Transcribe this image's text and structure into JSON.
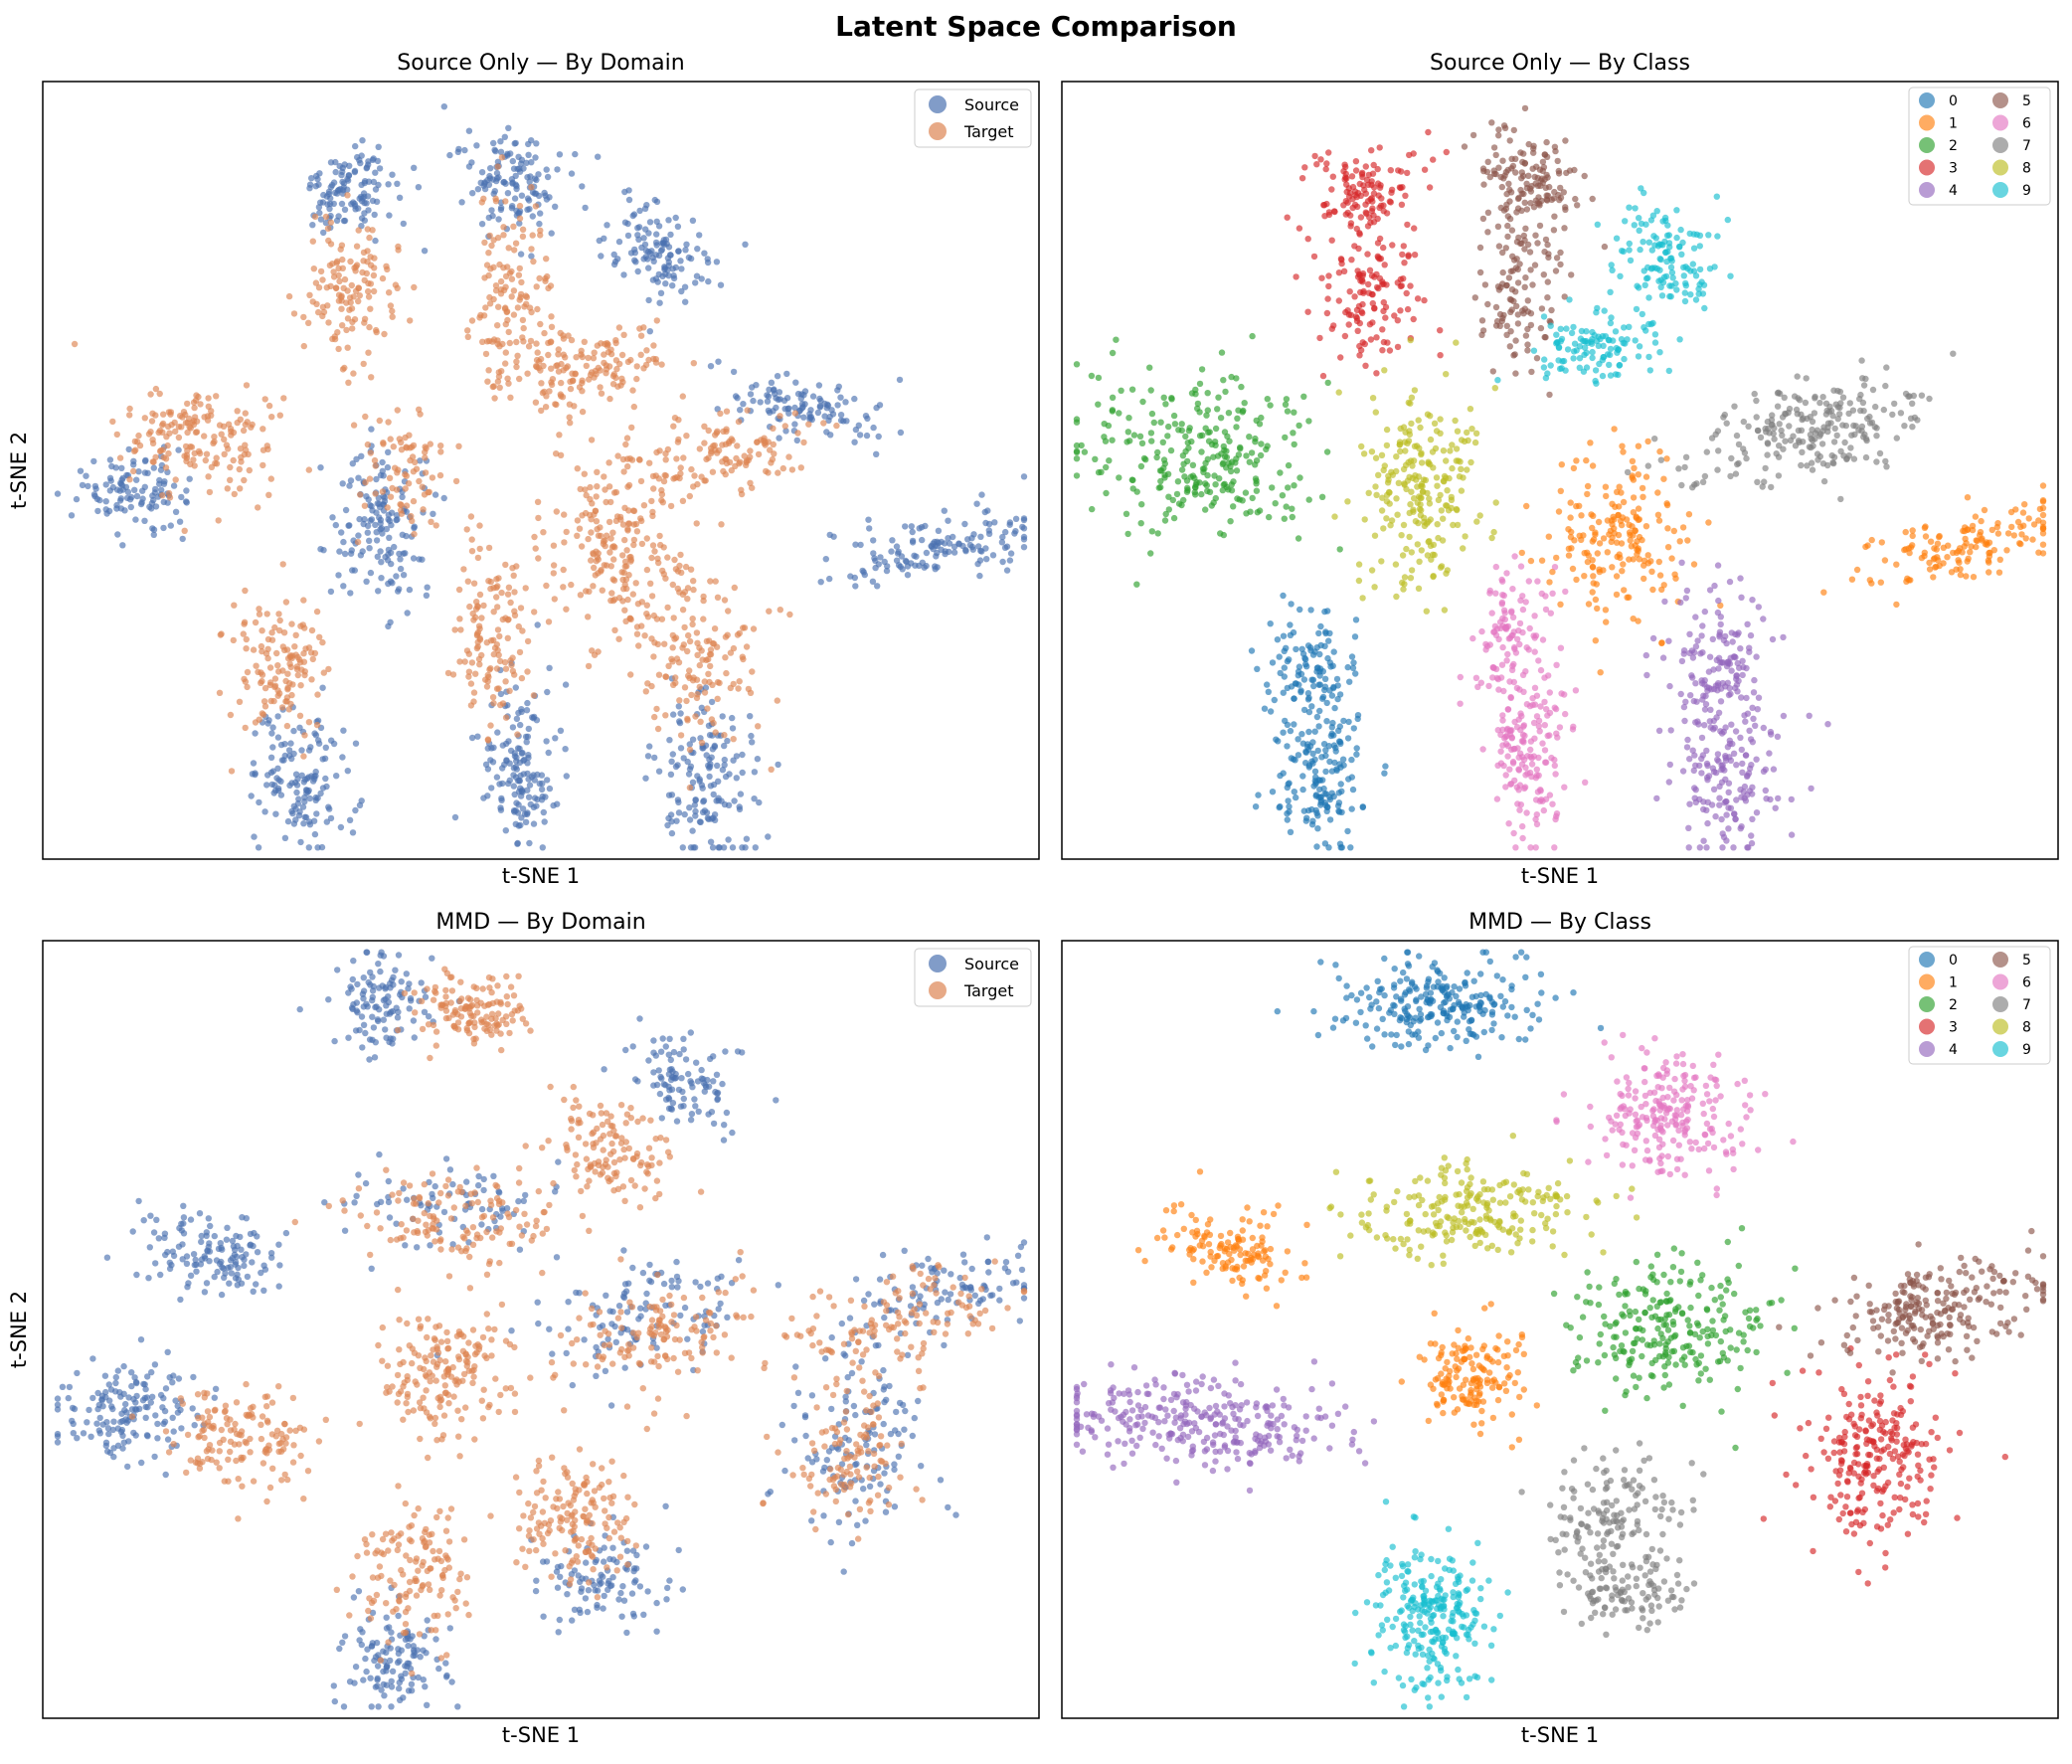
{
  "figure": {
    "title": "Latent Space Comparison"
  },
  "colors": {
    "source": "#4c72b0",
    "target": "#dd8452",
    "classes": [
      "#1f77b4",
      "#ff7f0e",
      "#2ca02c",
      "#d62728",
      "#9467bd",
      "#8c564b",
      "#e377c2",
      "#7f7f7f",
      "#bcbd22",
      "#17becf"
    ]
  },
  "chart_data": [
    {
      "type": "scatter",
      "title": "Source Only — By Domain",
      "xlabel": "t-SNE 1",
      "ylabel": "t-SNE 2",
      "ticks": "hidden",
      "legend": {
        "position": "top-right",
        "entries": [
          "Source",
          "Target"
        ]
      },
      "series": [
        {
          "name": "Source",
          "color": "#4c72b0",
          "clusters": [
            {
              "cx": 0.31,
              "cy": 0.86,
              "sx": 0.025,
              "sy": 0.03,
              "rot": -30,
              "n": 120
            },
            {
              "cx": 0.47,
              "cy": 0.87,
              "sx": 0.025,
              "sy": 0.035,
              "rot": 10,
              "n": 130
            },
            {
              "cx": 0.62,
              "cy": 0.78,
              "sx": 0.025,
              "sy": 0.035,
              "rot": 30,
              "n": 120
            },
            {
              "cx": 0.76,
              "cy": 0.58,
              "sx": 0.04,
              "sy": 0.02,
              "rot": -10,
              "n": 110
            },
            {
              "cx": 0.09,
              "cy": 0.47,
              "sx": 0.03,
              "sy": 0.025,
              "rot": 0,
              "n": 110
            },
            {
              "cx": 0.34,
              "cy": 0.43,
              "sx": 0.025,
              "sy": 0.05,
              "rot": 0,
              "n": 150
            },
            {
              "cx": 0.9,
              "cy": 0.4,
              "sx": 0.06,
              "sy": 0.02,
              "rot": 20,
              "n": 140
            },
            {
              "cx": 0.26,
              "cy": 0.1,
              "sx": 0.025,
              "sy": 0.045,
              "rot": 0,
              "n": 140
            },
            {
              "cx": 0.48,
              "cy": 0.12,
              "sx": 0.02,
              "sy": 0.06,
              "rot": 0,
              "n": 150
            },
            {
              "cx": 0.67,
              "cy": 0.1,
              "sx": 0.025,
              "sy": 0.06,
              "rot": 0,
              "n": 150
            }
          ]
        },
        {
          "name": "Target",
          "color": "#dd8452",
          "clusters": [
            {
              "cx": 0.31,
              "cy": 0.73,
              "sx": 0.025,
              "sy": 0.045,
              "rot": 0,
              "n": 130
            },
            {
              "cx": 0.47,
              "cy": 0.73,
              "sx": 0.02,
              "sy": 0.06,
              "rot": 0,
              "n": 130
            },
            {
              "cx": 0.54,
              "cy": 0.63,
              "sx": 0.04,
              "sy": 0.025,
              "rot": 20,
              "n": 140
            },
            {
              "cx": 0.68,
              "cy": 0.52,
              "sx": 0.05,
              "sy": 0.025,
              "rot": 10,
              "n": 130
            },
            {
              "cx": 0.16,
              "cy": 0.54,
              "sx": 0.045,
              "sy": 0.035,
              "rot": -20,
              "n": 170
            },
            {
              "cx": 0.36,
              "cy": 0.51,
              "sx": 0.025,
              "sy": 0.04,
              "rot": 0,
              "n": 80
            },
            {
              "cx": 0.57,
              "cy": 0.4,
              "sx": 0.035,
              "sy": 0.06,
              "rot": 0,
              "n": 200
            },
            {
              "cx": 0.24,
              "cy": 0.25,
              "sx": 0.025,
              "sy": 0.045,
              "rot": 0,
              "n": 130
            },
            {
              "cx": 0.45,
              "cy": 0.28,
              "sx": 0.02,
              "sy": 0.055,
              "rot": 0,
              "n": 130
            },
            {
              "cx": 0.66,
              "cy": 0.26,
              "sx": 0.03,
              "sy": 0.06,
              "rot": 0,
              "n": 150
            }
          ]
        }
      ]
    },
    {
      "type": "scatter",
      "title": "Source Only — By Class",
      "xlabel": "t-SNE 1",
      "ylabel": "",
      "ticks": "hidden",
      "legend": {
        "position": "top-right",
        "columns": 2,
        "entries": [
          "0",
          "1",
          "2",
          "3",
          "4",
          "5",
          "6",
          "7",
          "8",
          "9"
        ]
      },
      "series": [
        {
          "name": "0",
          "color": "#1f77b4",
          "clusters": [
            {
              "cx": 0.25,
              "cy": 0.24,
              "sx": 0.022,
              "sy": 0.045,
              "rot": 0,
              "n": 130
            },
            {
              "cx": 0.26,
              "cy": 0.1,
              "sx": 0.025,
              "sy": 0.045,
              "rot": 0,
              "n": 140
            }
          ]
        },
        {
          "name": "1",
          "color": "#ff7f0e",
          "clusters": [
            {
              "cx": 0.56,
              "cy": 0.41,
              "sx": 0.035,
              "sy": 0.055,
              "rot": 0,
              "n": 190
            },
            {
              "cx": 0.9,
              "cy": 0.4,
              "sx": 0.06,
              "sy": 0.022,
              "rot": 20,
              "n": 140
            }
          ]
        },
        {
          "name": "2",
          "color": "#2ca02c",
          "clusters": [
            {
              "cx": 0.13,
              "cy": 0.52,
              "sx": 0.06,
              "sy": 0.05,
              "rot": -15,
              "n": 280
            }
          ]
        },
        {
          "name": "3",
          "color": "#d62728",
          "clusters": [
            {
              "cx": 0.3,
              "cy": 0.86,
              "sx": 0.025,
              "sy": 0.03,
              "rot": -30,
              "n": 120
            },
            {
              "cx": 0.31,
              "cy": 0.73,
              "sx": 0.028,
              "sy": 0.045,
              "rot": 0,
              "n": 130
            }
          ]
        },
        {
          "name": "4",
          "color": "#9467bd",
          "clusters": [
            {
              "cx": 0.66,
              "cy": 0.25,
              "sx": 0.025,
              "sy": 0.055,
              "rot": 0,
              "n": 150
            },
            {
              "cx": 0.67,
              "cy": 0.1,
              "sx": 0.025,
              "sy": 0.055,
              "rot": 0,
              "n": 150
            }
          ]
        },
        {
          "name": "5",
          "color": "#8c564b",
          "clusters": [
            {
              "cx": 0.47,
              "cy": 0.87,
              "sx": 0.025,
              "sy": 0.035,
              "rot": 10,
              "n": 130
            },
            {
              "cx": 0.46,
              "cy": 0.74,
              "sx": 0.02,
              "sy": 0.055,
              "rot": 0,
              "n": 120
            }
          ]
        },
        {
          "name": "6",
          "color": "#e377c2",
          "clusters": [
            {
              "cx": 0.45,
              "cy": 0.28,
              "sx": 0.02,
              "sy": 0.055,
              "rot": 0,
              "n": 130
            },
            {
              "cx": 0.47,
              "cy": 0.12,
              "sx": 0.02,
              "sy": 0.055,
              "rot": 0,
              "n": 140
            }
          ]
        },
        {
          "name": "7",
          "color": "#7f7f7f",
          "clusters": [
            {
              "cx": 0.75,
              "cy": 0.55,
              "sx": 0.06,
              "sy": 0.03,
              "rot": 20,
              "n": 230
            }
          ]
        },
        {
          "name": "8",
          "color": "#bcbd22",
          "clusters": [
            {
              "cx": 0.36,
              "cy": 0.48,
              "sx": 0.03,
              "sy": 0.07,
              "rot": 0,
              "n": 230
            }
          ]
        },
        {
          "name": "9",
          "color": "#17becf",
          "clusters": [
            {
              "cx": 0.61,
              "cy": 0.78,
              "sx": 0.025,
              "sy": 0.035,
              "rot": 30,
              "n": 120
            },
            {
              "cx": 0.54,
              "cy": 0.66,
              "sx": 0.035,
              "sy": 0.025,
              "rot": 20,
              "n": 120
            }
          ]
        }
      ]
    },
    {
      "type": "scatter",
      "title": "MMD — By Domain",
      "xlabel": "t-SNE 1",
      "ylabel": "t-SNE 2",
      "ticks": "hidden",
      "legend": {
        "position": "top-right",
        "entries": [
          "Source",
          "Target"
        ]
      },
      "series": [
        {
          "name": "Source",
          "color": "#4c72b0",
          "clusters": [
            {
              "cx": 0.34,
              "cy": 0.92,
              "sx": 0.025,
              "sy": 0.03,
              "rot": 0,
              "n": 110
            },
            {
              "cx": 0.64,
              "cy": 0.82,
              "sx": 0.025,
              "sy": 0.035,
              "rot": 30,
              "n": 100
            },
            {
              "cx": 0.17,
              "cy": 0.6,
              "sx": 0.035,
              "sy": 0.025,
              "rot": -30,
              "n": 130
            },
            {
              "cx": 0.41,
              "cy": 0.66,
              "sx": 0.055,
              "sy": 0.03,
              "rot": 0,
              "n": 80
            },
            {
              "cx": 0.6,
              "cy": 0.52,
              "sx": 0.055,
              "sy": 0.04,
              "rot": 15,
              "n": 110
            },
            {
              "cx": 0.9,
              "cy": 0.55,
              "sx": 0.05,
              "sy": 0.025,
              "rot": 20,
              "n": 100
            },
            {
              "cx": 0.08,
              "cy": 0.4,
              "sx": 0.04,
              "sy": 0.03,
              "rot": -10,
              "n": 150
            },
            {
              "cx": 0.82,
              "cy": 0.35,
              "sx": 0.035,
              "sy": 0.06,
              "rot": 0,
              "n": 130
            },
            {
              "cx": 0.56,
              "cy": 0.18,
              "sx": 0.03,
              "sy": 0.03,
              "rot": 0,
              "n": 100
            },
            {
              "cx": 0.35,
              "cy": 0.08,
              "sx": 0.025,
              "sy": 0.035,
              "rot": 0,
              "n": 120
            }
          ]
        },
        {
          "name": "Target",
          "color": "#dd8452",
          "clusters": [
            {
              "cx": 0.43,
              "cy": 0.91,
              "sx": 0.03,
              "sy": 0.025,
              "rot": 0,
              "n": 130
            },
            {
              "cx": 0.57,
              "cy": 0.73,
              "sx": 0.03,
              "sy": 0.04,
              "rot": 30,
              "n": 120
            },
            {
              "cx": 0.41,
              "cy": 0.64,
              "sx": 0.055,
              "sy": 0.03,
              "rot": 0,
              "n": 130
            },
            {
              "cx": 0.62,
              "cy": 0.49,
              "sx": 0.05,
              "sy": 0.035,
              "rot": 15,
              "n": 130
            },
            {
              "cx": 0.86,
              "cy": 0.51,
              "sx": 0.055,
              "sy": 0.03,
              "rot": 20,
              "n": 120
            },
            {
              "cx": 0.2,
              "cy": 0.36,
              "sx": 0.04,
              "sy": 0.03,
              "rot": 0,
              "n": 140
            },
            {
              "cx": 0.4,
              "cy": 0.44,
              "sx": 0.03,
              "sy": 0.04,
              "rot": 0,
              "n": 170
            },
            {
              "cx": 0.81,
              "cy": 0.34,
              "sx": 0.03,
              "sy": 0.05,
              "rot": 0,
              "n": 110
            },
            {
              "cx": 0.53,
              "cy": 0.26,
              "sx": 0.035,
              "sy": 0.04,
              "rot": 0,
              "n": 150
            },
            {
              "cx": 0.37,
              "cy": 0.19,
              "sx": 0.03,
              "sy": 0.045,
              "rot": 0,
              "n": 130
            }
          ]
        }
      ]
    },
    {
      "type": "scatter",
      "title": "MMD — By Class",
      "xlabel": "t-SNE 1",
      "ylabel": "",
      "ticks": "hidden",
      "legend": {
        "position": "top-right",
        "columns": 2,
        "entries": [
          "0",
          "1",
          "2",
          "3",
          "4",
          "5",
          "6",
          "7",
          "8",
          "9"
        ]
      },
      "series": [
        {
          "name": "0",
          "color": "#1f77b4",
          "clusters": [
            {
              "cx": 0.38,
              "cy": 0.92,
              "sx": 0.055,
              "sy": 0.028,
              "rot": 0,
              "n": 240
            }
          ]
        },
        {
          "name": "1",
          "color": "#ff7f0e",
          "clusters": [
            {
              "cx": 0.17,
              "cy": 0.6,
              "sx": 0.035,
              "sy": 0.025,
              "rot": -30,
              "n": 130
            },
            {
              "cx": 0.41,
              "cy": 0.44,
              "sx": 0.025,
              "sy": 0.035,
              "rot": 0,
              "n": 150
            }
          ]
        },
        {
          "name": "2",
          "color": "#2ca02c",
          "clusters": [
            {
              "cx": 0.61,
              "cy": 0.5,
              "sx": 0.05,
              "sy": 0.04,
              "rot": 15,
              "n": 240
            }
          ]
        },
        {
          "name": "3",
          "color": "#d62728",
          "clusters": [
            {
              "cx": 0.82,
              "cy": 0.34,
              "sx": 0.035,
              "sy": 0.055,
              "rot": 0,
              "n": 240
            }
          ]
        },
        {
          "name": "4",
          "color": "#9467bd",
          "clusters": [
            {
              "cx": 0.14,
              "cy": 0.38,
              "sx": 0.07,
              "sy": 0.03,
              "rot": -5,
              "n": 290
            }
          ]
        },
        {
          "name": "5",
          "color": "#8c564b",
          "clusters": [
            {
              "cx": 0.88,
              "cy": 0.53,
              "sx": 0.055,
              "sy": 0.03,
              "rot": 20,
              "n": 220
            }
          ]
        },
        {
          "name": "6",
          "color": "#e377c2",
          "clusters": [
            {
              "cx": 0.61,
              "cy": 0.78,
              "sx": 0.035,
              "sy": 0.045,
              "rot": 30,
              "n": 220
            }
          ]
        },
        {
          "name": "7",
          "color": "#7f7f7f",
          "clusters": [
            {
              "cx": 0.55,
              "cy": 0.26,
              "sx": 0.035,
              "sy": 0.035,
              "rot": 0,
              "n": 140
            },
            {
              "cx": 0.57,
              "cy": 0.16,
              "sx": 0.03,
              "sy": 0.025,
              "rot": 0,
              "n": 100
            }
          ]
        },
        {
          "name": "8",
          "color": "#bcbd22",
          "clusters": [
            {
              "cx": 0.41,
              "cy": 0.65,
              "sx": 0.06,
              "sy": 0.03,
              "rot": 0,
              "n": 220
            }
          ]
        },
        {
          "name": "9",
          "color": "#17becf",
          "clusters": [
            {
              "cx": 0.37,
              "cy": 0.13,
              "sx": 0.03,
              "sy": 0.05,
              "rot": 0,
              "n": 250
            }
          ]
        }
      ]
    }
  ]
}
